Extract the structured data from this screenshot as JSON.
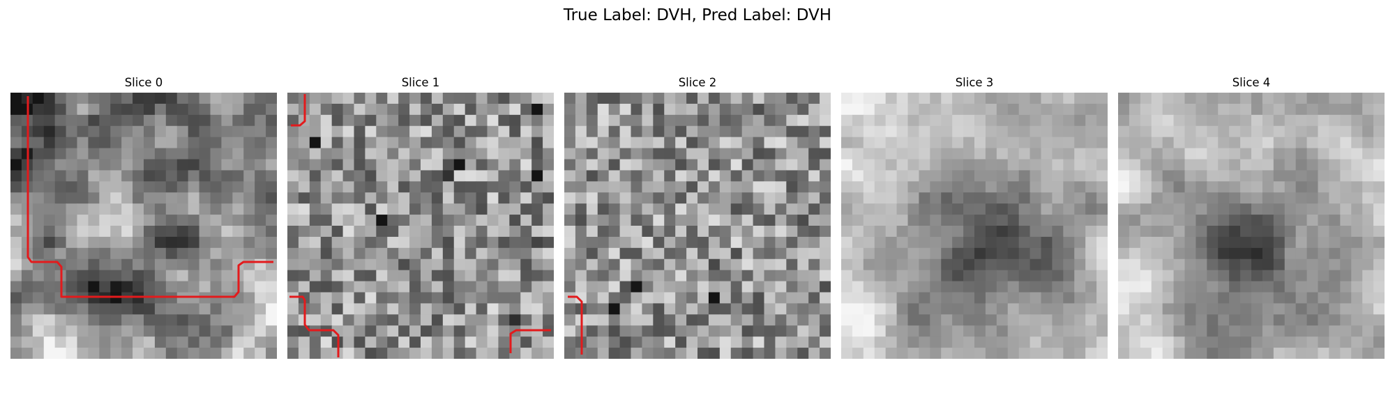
{
  "figure": {
    "title": "True Label: DVH, Pred Label: DVH"
  },
  "panels": [
    {
      "title": "Slice 0",
      "seed": 11,
      "style": "smooth",
      "invert": false
    },
    {
      "title": "Slice 1",
      "seed": 23,
      "style": "noisy",
      "invert": false
    },
    {
      "title": "Slice 2",
      "seed": 37,
      "style": "noisy",
      "invert": false
    },
    {
      "title": "Slice 3",
      "seed": 51,
      "style": "blob",
      "invert": false
    },
    {
      "title": "Slice 4",
      "seed": 53,
      "style": "blob",
      "invert": false
    }
  ],
  "colors": {
    "contour": "#e31a1c",
    "background": "#ffffff"
  },
  "image_grid": {
    "rows": 24,
    "cols": 24
  }
}
